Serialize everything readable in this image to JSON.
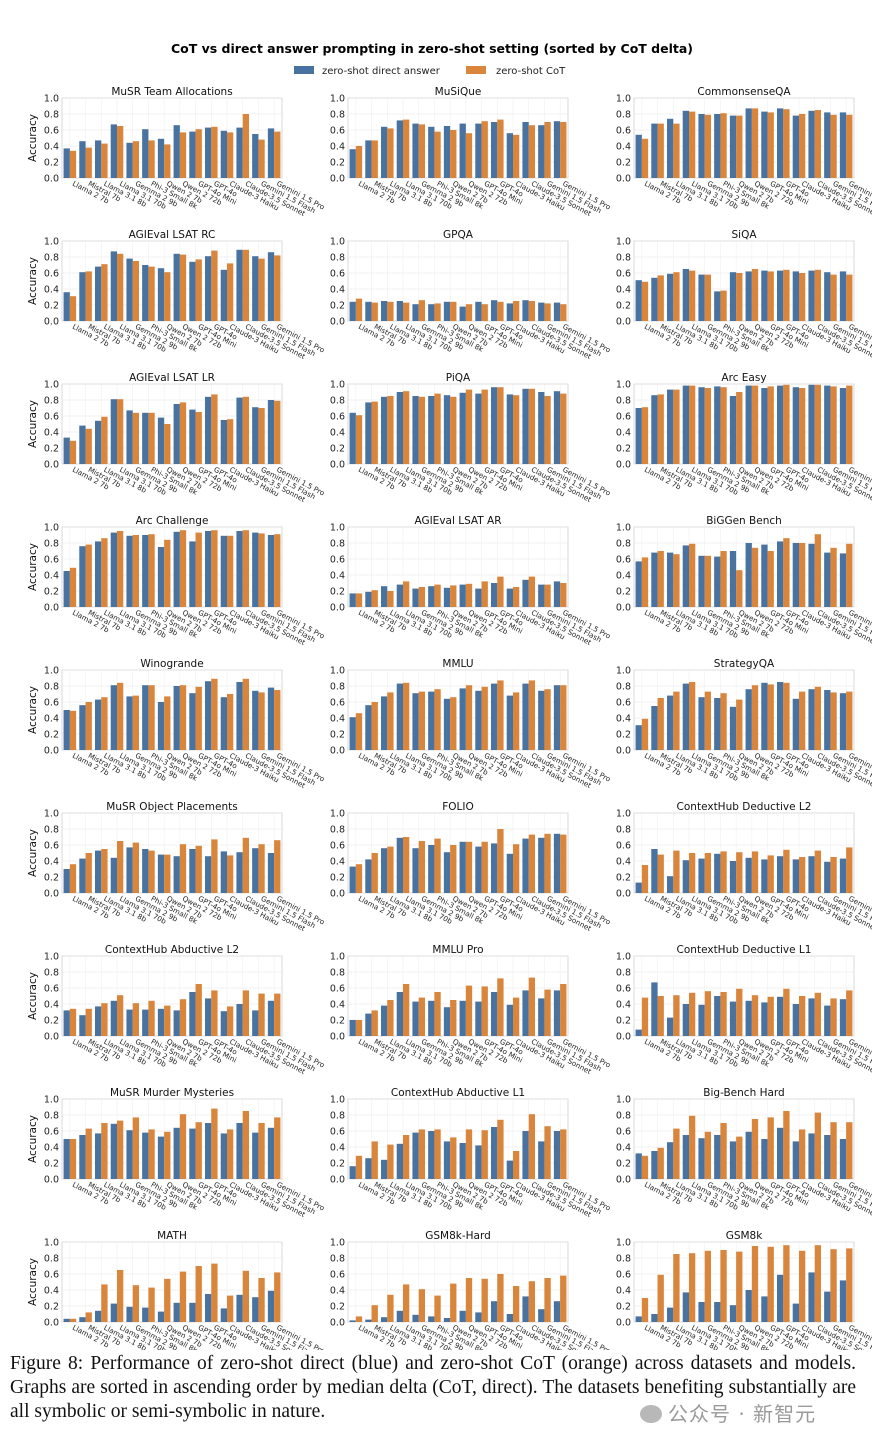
{
  "figure": {
    "suptitle": "CoT vs direct answer prompting in zero-shot setting (sorted by CoT delta)",
    "legend": [
      {
        "label": "zero-shot direct answer",
        "color": "#4872a0"
      },
      {
        "label": "zero-shot CoT",
        "color": "#d9853b"
      }
    ],
    "caption": "Figure 8: Performance of zero-shot direct (blue) and zero-shot CoT (orange) across datasets and models. Graphs are sorted in ascending order by median delta (CoT, direct). The datasets benefiting substantially are all symbolic or semi-symbolic in nature.",
    "watermark": "公众号 · 新智元"
  },
  "chart_data": {
    "type": "bar",
    "layout": "grid 9x3",
    "ylabel": "Accuracy",
    "ylim": [
      0,
      1.0
    ],
    "yticks": [
      "0.0",
      "0.2",
      "0.4",
      "0.6",
      "0.8",
      "1.0"
    ],
    "grid": true,
    "legend_position": "top-center",
    "categories": [
      "Llama 2 7b",
      "Mistral 7b",
      "Llama 3.1 8b",
      "Llama 3.1 70b",
      "Gemma 2 9b",
      "Phi-3 Small 8k",
      "Qwen 2 7b",
      "Qwen 2 72b",
      "GPT-4o Mini",
      "GPT-4o",
      "Claude-3 Haiku",
      "Claude-3.5 Sonnet",
      "Gemini 1.5 Flash",
      "Gemini 1.5 Pro"
    ],
    "series_names": [
      "zero-shot direct answer",
      "zero-shot CoT"
    ],
    "panels": [
      {
        "title": "MuSR Team Allocations",
        "direct": [
          0.37,
          0.46,
          0.47,
          0.67,
          0.44,
          0.61,
          0.49,
          0.66,
          0.58,
          0.63,
          0.59,
          0.63,
          0.55,
          0.62
        ],
        "cot": [
          0.34,
          0.38,
          0.43,
          0.65,
          0.46,
          0.47,
          0.42,
          0.57,
          0.61,
          0.64,
          0.57,
          0.8,
          0.48,
          0.58
        ]
      },
      {
        "title": "MuSiQue",
        "direct": [
          0.36,
          0.47,
          0.64,
          0.72,
          0.68,
          0.64,
          0.65,
          0.68,
          0.68,
          0.7,
          0.56,
          0.7,
          0.66,
          0.71
        ],
        "cot": [
          0.4,
          0.47,
          0.62,
          0.73,
          0.67,
          0.58,
          0.6,
          0.56,
          0.71,
          0.73,
          0.54,
          0.66,
          0.7,
          0.7
        ]
      },
      {
        "title": "CommonsenseQA",
        "direct": [
          0.54,
          0.68,
          0.74,
          0.84,
          0.8,
          0.8,
          0.78,
          0.87,
          0.83,
          0.87,
          0.78,
          0.84,
          0.82,
          0.82
        ],
        "cot": [
          0.49,
          0.68,
          0.68,
          0.83,
          0.79,
          0.81,
          0.78,
          0.87,
          0.82,
          0.86,
          0.8,
          0.85,
          0.79,
          0.79
        ]
      },
      {
        "title": "AGIEval LSAT RC",
        "direct": [
          0.36,
          0.61,
          0.68,
          0.87,
          0.78,
          0.7,
          0.66,
          0.84,
          0.74,
          0.81,
          0.64,
          0.89,
          0.81,
          0.86
        ],
        "cot": [
          0.31,
          0.62,
          0.71,
          0.84,
          0.75,
          0.68,
          0.61,
          0.83,
          0.77,
          0.88,
          0.72,
          0.89,
          0.78,
          0.82
        ]
      },
      {
        "title": "GPQA",
        "direct": [
          0.24,
          0.24,
          0.25,
          0.25,
          0.21,
          0.21,
          0.24,
          0.18,
          0.24,
          0.26,
          0.22,
          0.26,
          0.23,
          0.23
        ],
        "cot": [
          0.28,
          0.23,
          0.24,
          0.23,
          0.26,
          0.22,
          0.24,
          0.21,
          0.21,
          0.24,
          0.25,
          0.25,
          0.22,
          0.21
        ]
      },
      {
        "title": "SiQA",
        "direct": [
          0.51,
          0.54,
          0.59,
          0.65,
          0.58,
          0.37,
          0.61,
          0.62,
          0.63,
          0.63,
          0.62,
          0.63,
          0.61,
          0.62
        ],
        "cot": [
          0.49,
          0.57,
          0.61,
          0.63,
          0.58,
          0.38,
          0.6,
          0.65,
          0.62,
          0.64,
          0.6,
          0.64,
          0.58,
          0.58
        ]
      },
      {
        "title": "AGIEval LSAT LR",
        "direct": [
          0.33,
          0.48,
          0.54,
          0.81,
          0.67,
          0.64,
          0.58,
          0.75,
          0.68,
          0.84,
          0.55,
          0.83,
          0.71,
          0.8
        ],
        "cot": [
          0.29,
          0.44,
          0.59,
          0.81,
          0.64,
          0.64,
          0.5,
          0.77,
          0.65,
          0.87,
          0.56,
          0.84,
          0.7,
          0.79
        ]
      },
      {
        "title": "PiQA",
        "direct": [
          0.64,
          0.77,
          0.84,
          0.9,
          0.85,
          0.85,
          0.86,
          0.89,
          0.88,
          0.96,
          0.87,
          0.94,
          0.9,
          0.91
        ],
        "cot": [
          0.61,
          0.78,
          0.85,
          0.91,
          0.84,
          0.88,
          0.84,
          0.93,
          0.93,
          0.96,
          0.86,
          0.94,
          0.85,
          0.88
        ]
      },
      {
        "title": "Arc Easy",
        "direct": [
          0.7,
          0.86,
          0.93,
          0.98,
          0.96,
          0.97,
          0.85,
          0.98,
          0.95,
          0.98,
          0.96,
          0.99,
          0.98,
          0.95
        ],
        "cot": [
          0.71,
          0.87,
          0.93,
          0.98,
          0.95,
          0.96,
          0.9,
          0.98,
          0.97,
          0.99,
          0.95,
          0.99,
          0.97,
          0.98
        ]
      },
      {
        "title": "Arc Challenge",
        "direct": [
          0.45,
          0.76,
          0.82,
          0.93,
          0.89,
          0.9,
          0.75,
          0.94,
          0.82,
          0.95,
          0.89,
          0.95,
          0.93,
          0.9
        ],
        "cot": [
          0.49,
          0.78,
          0.86,
          0.95,
          0.9,
          0.91,
          0.84,
          0.96,
          0.93,
          0.96,
          0.89,
          0.96,
          0.92,
          0.91
        ]
      },
      {
        "title": "AGIEval LSAT AR",
        "direct": [
          0.17,
          0.19,
          0.26,
          0.28,
          0.23,
          0.26,
          0.24,
          0.28,
          0.23,
          0.3,
          0.23,
          0.34,
          0.28,
          0.32
        ],
        "cot": [
          0.17,
          0.21,
          0.2,
          0.32,
          0.25,
          0.28,
          0.27,
          0.29,
          0.32,
          0.38,
          0.25,
          0.38,
          0.28,
          0.3
        ]
      },
      {
        "title": "BiGGen Bench",
        "direct": [
          0.57,
          0.68,
          0.68,
          0.77,
          0.64,
          0.63,
          0.7,
          0.8,
          0.78,
          0.82,
          0.8,
          0.79,
          0.68,
          0.67
        ],
        "cot": [
          0.62,
          0.7,
          0.66,
          0.79,
          0.64,
          0.7,
          0.46,
          0.74,
          0.7,
          0.86,
          0.8,
          0.91,
          0.74,
          0.79
        ]
      },
      {
        "title": "Winogrande",
        "direct": [
          0.5,
          0.56,
          0.63,
          0.81,
          0.67,
          0.81,
          0.6,
          0.8,
          0.71,
          0.86,
          0.66,
          0.85,
          0.74,
          0.78
        ],
        "cot": [
          0.49,
          0.6,
          0.66,
          0.84,
          0.68,
          0.81,
          0.67,
          0.81,
          0.79,
          0.89,
          0.7,
          0.89,
          0.72,
          0.75
        ]
      },
      {
        "title": "MMLU",
        "direct": [
          0.41,
          0.56,
          0.67,
          0.83,
          0.71,
          0.73,
          0.64,
          0.77,
          0.74,
          0.83,
          0.68,
          0.83,
          0.74,
          0.81
        ],
        "cot": [
          0.46,
          0.6,
          0.72,
          0.84,
          0.73,
          0.76,
          0.66,
          0.81,
          0.79,
          0.87,
          0.72,
          0.87,
          0.76,
          0.81
        ]
      },
      {
        "title": "StrategyQA",
        "direct": [
          0.31,
          0.55,
          0.68,
          0.83,
          0.66,
          0.65,
          0.54,
          0.76,
          0.84,
          0.85,
          0.64,
          0.76,
          0.75,
          0.71
        ],
        "cot": [
          0.39,
          0.65,
          0.73,
          0.85,
          0.73,
          0.71,
          0.63,
          0.81,
          0.82,
          0.84,
          0.73,
          0.79,
          0.72,
          0.73
        ]
      },
      {
        "title": "MuSR Object Placements",
        "direct": [
          0.3,
          0.43,
          0.53,
          0.44,
          0.57,
          0.55,
          0.48,
          0.46,
          0.55,
          0.46,
          0.52,
          0.51,
          0.56,
          0.5
        ],
        "cot": [
          0.36,
          0.5,
          0.55,
          0.65,
          0.63,
          0.53,
          0.48,
          0.61,
          0.59,
          0.67,
          0.47,
          0.69,
          0.61,
          0.66
        ]
      },
      {
        "title": "FOLIO",
        "direct": [
          0.33,
          0.42,
          0.56,
          0.69,
          0.56,
          0.6,
          0.51,
          0.64,
          0.58,
          0.62,
          0.49,
          0.68,
          0.69,
          0.74
        ],
        "cot": [
          0.36,
          0.5,
          0.58,
          0.7,
          0.65,
          0.68,
          0.6,
          0.64,
          0.64,
          0.8,
          0.61,
          0.73,
          0.74,
          0.73
        ]
      },
      {
        "title": "ContextHub Deductive L2",
        "direct": [
          0.13,
          0.55,
          0.21,
          0.41,
          0.43,
          0.49,
          0.4,
          0.44,
          0.42,
          0.46,
          0.42,
          0.46,
          0.39,
          0.43
        ],
        "cot": [
          0.35,
          0.48,
          0.53,
          0.5,
          0.5,
          0.52,
          0.51,
          0.52,
          0.47,
          0.54,
          0.45,
          0.53,
          0.45,
          0.57
        ]
      },
      {
        "title": "ContextHub Abductive L2",
        "direct": [
          0.32,
          0.26,
          0.37,
          0.44,
          0.33,
          0.33,
          0.34,
          0.32,
          0.55,
          0.47,
          0.31,
          0.4,
          0.32,
          0.44
        ],
        "cot": [
          0.34,
          0.34,
          0.41,
          0.51,
          0.41,
          0.44,
          0.38,
          0.46,
          0.65,
          0.57,
          0.37,
          0.57,
          0.53,
          0.53
        ]
      },
      {
        "title": "MMLU Pro",
        "direct": [
          0.2,
          0.28,
          0.38,
          0.55,
          0.43,
          0.44,
          0.36,
          0.44,
          0.43,
          0.55,
          0.39,
          0.57,
          0.47,
          0.57
        ],
        "cot": [
          0.2,
          0.32,
          0.45,
          0.65,
          0.48,
          0.55,
          0.45,
          0.63,
          0.62,
          0.72,
          0.48,
          0.73,
          0.58,
          0.65
        ]
      },
      {
        "title": "ContextHub Deductive L1",
        "direct": [
          0.08,
          0.67,
          0.23,
          0.4,
          0.39,
          0.5,
          0.43,
          0.44,
          0.42,
          0.49,
          0.4,
          0.47,
          0.38,
          0.46
        ],
        "cot": [
          0.48,
          0.5,
          0.51,
          0.54,
          0.56,
          0.55,
          0.59,
          0.51,
          0.49,
          0.59,
          0.5,
          0.54,
          0.47,
          0.57
        ]
      },
      {
        "title": "MuSR Murder Mysteries",
        "direct": [
          0.5,
          0.55,
          0.57,
          0.69,
          0.61,
          0.58,
          0.53,
          0.64,
          0.63,
          0.7,
          0.57,
          0.7,
          0.58,
          0.64
        ],
        "cot": [
          0.5,
          0.63,
          0.7,
          0.73,
          0.77,
          0.62,
          0.59,
          0.81,
          0.71,
          0.88,
          0.62,
          0.85,
          0.7,
          0.77
        ]
      },
      {
        "title": "ContextHub Abductive L1",
        "direct": [
          0.16,
          0.26,
          0.24,
          0.44,
          0.58,
          0.6,
          0.47,
          0.45,
          0.42,
          0.65,
          0.23,
          0.6,
          0.47,
          0.6
        ],
        "cot": [
          0.29,
          0.47,
          0.43,
          0.55,
          0.62,
          0.62,
          0.52,
          0.62,
          0.61,
          0.74,
          0.35,
          0.81,
          0.66,
          0.62
        ]
      },
      {
        "title": "Big-Bench Hard",
        "direct": [
          0.32,
          0.35,
          0.46,
          0.55,
          0.51,
          0.55,
          0.47,
          0.59,
          0.5,
          0.64,
          0.47,
          0.57,
          0.55,
          0.5
        ],
        "cot": [
          0.29,
          0.39,
          0.63,
          0.79,
          0.59,
          0.7,
          0.53,
          0.75,
          0.77,
          0.85,
          0.62,
          0.83,
          0.71,
          0.71
        ]
      },
      {
        "title": "MATH",
        "direct": [
          0.04,
          0.06,
          0.14,
          0.23,
          0.19,
          0.18,
          0.13,
          0.24,
          0.24,
          0.35,
          0.17,
          0.34,
          0.31,
          0.39
        ],
        "cot": [
          0.04,
          0.12,
          0.47,
          0.65,
          0.46,
          0.43,
          0.54,
          0.63,
          0.7,
          0.73,
          0.33,
          0.64,
          0.55,
          0.62
        ]
      },
      {
        "title": "GSM8k-Hard",
        "direct": [
          0.02,
          0.03,
          0.06,
          0.14,
          0.09,
          0.07,
          0.05,
          0.14,
          0.12,
          0.26,
          0.1,
          0.32,
          0.16,
          0.26
        ],
        "cot": [
          0.07,
          0.21,
          0.34,
          0.47,
          0.41,
          0.33,
          0.48,
          0.55,
          0.54,
          0.6,
          0.45,
          0.51,
          0.55,
          0.58
        ]
      },
      {
        "title": "GSM8k",
        "direct": [
          0.07,
          0.1,
          0.18,
          0.37,
          0.25,
          0.25,
          0.21,
          0.4,
          0.32,
          0.59,
          0.23,
          0.62,
          0.38,
          0.52
        ],
        "cot": [
          0.3,
          0.59,
          0.85,
          0.86,
          0.89,
          0.9,
          0.88,
          0.95,
          0.94,
          0.96,
          0.89,
          0.96,
          0.91,
          0.92
        ]
      }
    ]
  }
}
